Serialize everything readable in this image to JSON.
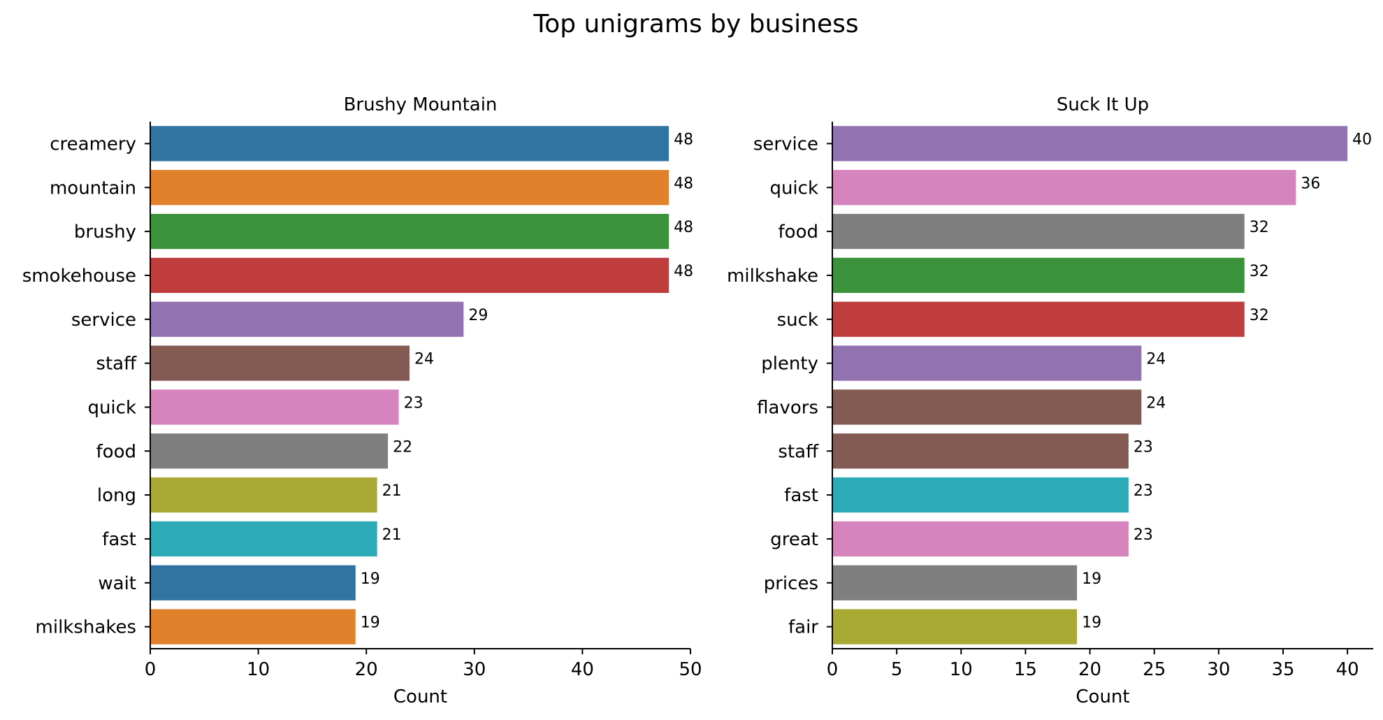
{
  "figure": {
    "title": "Top unigrams by business"
  },
  "chart_data": [
    {
      "type": "bar",
      "orientation": "horizontal",
      "title": "Brushy Mountain",
      "xlabel": "Count",
      "ylabel": "",
      "xlim": [
        0,
        50
      ],
      "xticks": [
        "0",
        "10",
        "20",
        "30",
        "40",
        "50"
      ],
      "grid": false,
      "categories": [
        "creamery",
        "mountain",
        "brushy",
        "smokehouse",
        "service",
        "staff",
        "quick",
        "food",
        "long",
        "fast",
        "wait",
        "milkshakes"
      ],
      "values": [
        48,
        48,
        48,
        48,
        29,
        24,
        23,
        22,
        21,
        21,
        19,
        19
      ],
      "colors": [
        "#3274a1",
        "#e1812c",
        "#3a923a",
        "#c03d3e",
        "#9372b2",
        "#845b53",
        "#d684bd",
        "#7f7f7f",
        "#a9aa35",
        "#2eabb8",
        "#3274a1",
        "#e1812c"
      ]
    },
    {
      "type": "bar",
      "orientation": "horizontal",
      "title": "Suck It Up",
      "xlabel": "Count",
      "ylabel": "",
      "xlim": [
        0,
        42
      ],
      "xticks": [
        "0",
        "5",
        "10",
        "15",
        "20",
        "25",
        "30",
        "35",
        "40"
      ],
      "grid": false,
      "categories": [
        "service",
        "quick",
        "food",
        "milkshake",
        "suck",
        "plenty",
        "flavors",
        "staff",
        "fast",
        "great",
        "prices",
        "fair"
      ],
      "values": [
        40,
        36,
        32,
        32,
        32,
        24,
        24,
        23,
        23,
        23,
        19,
        19
      ],
      "colors": [
        "#9372b2",
        "#d684bd",
        "#7f7f7f",
        "#3a923a",
        "#c03d3e",
        "#9372b2",
        "#845b53",
        "#845b53",
        "#2eabb8",
        "#d684bd",
        "#7f7f7f",
        "#a9aa35"
      ]
    }
  ]
}
